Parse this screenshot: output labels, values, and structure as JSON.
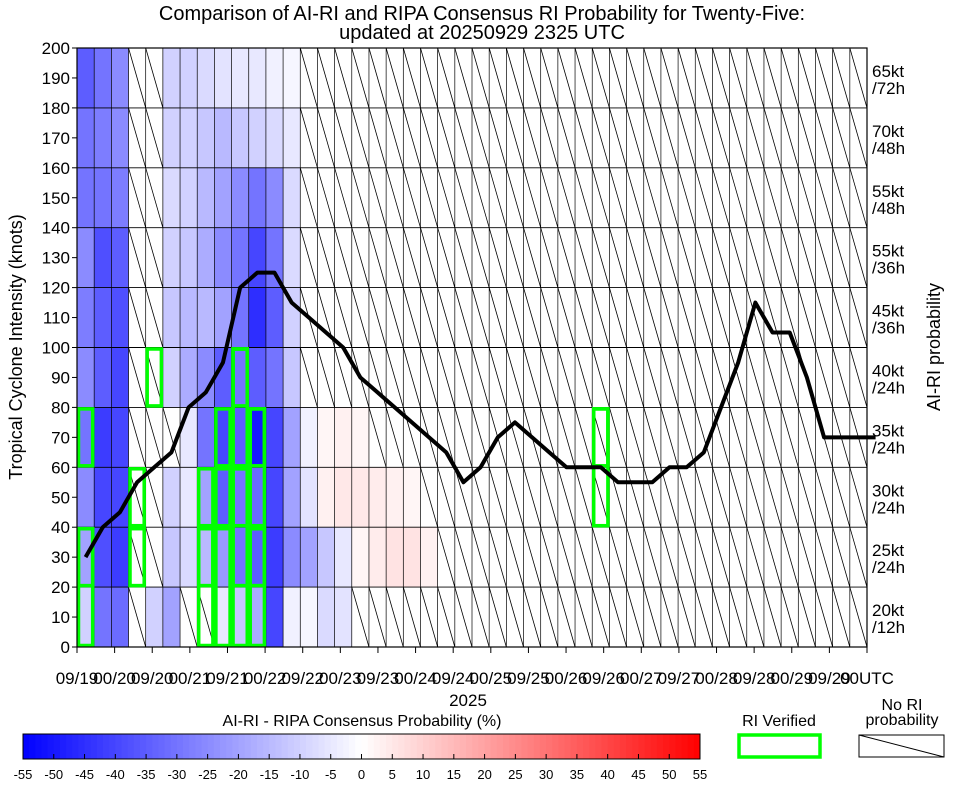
{
  "chart_data": {
    "type": "heatmap",
    "title_line1": "Comparison of AI-RI and RIPA Consensus RI Probability for Twenty-Five:",
    "title_line2": "updated at 20250929 2325 UTC",
    "ylabel": "Tropical Cyclone Intensity (knots)",
    "right_label": "AI-RI probability",
    "xlabel_year": "2025",
    "ylim": [
      0,
      200
    ],
    "y_ticks": [
      "0",
      "10",
      "20",
      "30",
      "40",
      "50",
      "60",
      "70",
      "80",
      "90",
      "100",
      "110",
      "120",
      "130",
      "140",
      "150",
      "160",
      "170",
      "180",
      "190",
      "200"
    ],
    "x_tick_labels": [
      "09/19",
      "00/20",
      "09/20",
      "00/21",
      "09/21",
      "00/22",
      "09/22",
      "00/23",
      "09/23",
      "00/24",
      "09/24",
      "00/25",
      "09/25",
      "00/26",
      "09/26",
      "00/27",
      "09/27",
      "00/28",
      "09/28",
      "00/29",
      "09/29",
      "00UTC"
    ],
    "rows": [
      {
        "label1": "20kt",
        "label2": "/12h",
        "y_low": 0,
        "y_high": 20
      },
      {
        "label1": "25kt",
        "label2": "/24h",
        "y_low": 20,
        "y_high": 40
      },
      {
        "label1": "30kt",
        "label2": "/24h",
        "y_low": 40,
        "y_high": 60
      },
      {
        "label1": "35kt",
        "label2": "/24h",
        "y_low": 60,
        "y_high": 80
      },
      {
        "label1": "40kt",
        "label2": "/24h",
        "y_low": 80,
        "y_high": 100
      },
      {
        "label1": "45kt",
        "label2": "/36h",
        "y_low": 100,
        "y_high": 120
      },
      {
        "label1": "55kt",
        "label2": "/36h",
        "y_low": 120,
        "y_high": 140
      },
      {
        "label1": "55kt",
        "label2": "/48h",
        "y_low": 140,
        "y_high": 160
      },
      {
        "label1": "70kt",
        "label2": "/48h",
        "y_low": 160,
        "y_high": 180
      },
      {
        "label1": "65kt",
        "label2": "/72h",
        "y_low": 180,
        "y_high": 200
      }
    ],
    "intensity_series": [
      30,
      40,
      45,
      55,
      60,
      65,
      80,
      85,
      95,
      120,
      125,
      125,
      115,
      110,
      105,
      100,
      90,
      85,
      80,
      75,
      70,
      65,
      55,
      60,
      70,
      75,
      70,
      65,
      60,
      60,
      60,
      55,
      55,
      55,
      60,
      60,
      65,
      80,
      95,
      115,
      105,
      105,
      90,
      70,
      70,
      70,
      70
    ],
    "cell_values": [
      [
        -10,
        -30,
        -32,
        null,
        -10,
        -20,
        null,
        null,
        -5,
        -12,
        -18,
        -40,
        -3,
        -2,
        -8,
        -6,
        null,
        null,
        null,
        null,
        null,
        null,
        null,
        null,
        null,
        null,
        null,
        null,
        null,
        null,
        null,
        null,
        null,
        null,
        null,
        null,
        null,
        null,
        null,
        null,
        null,
        null,
        null,
        null,
        null,
        null
      ],
      [
        -20,
        -38,
        -42,
        null,
        null,
        -12,
        -8,
        -15,
        -22,
        -30,
        -35,
        -42,
        -25,
        -20,
        -12,
        -5,
        2,
        4,
        6,
        6,
        3,
        null,
        null,
        null,
        null,
        null,
        null,
        null,
        null,
        null,
        null,
        null,
        null,
        null,
        null,
        null,
        null,
        null,
        null,
        null,
        null,
        null,
        null,
        null,
        null,
        null
      ],
      [
        -25,
        -40,
        -40,
        null,
        null,
        -10,
        -5,
        -20,
        -35,
        -30,
        -32,
        -40,
        -20,
        -6,
        3,
        5,
        5,
        4,
        3,
        2,
        null,
        null,
        null,
        null,
        null,
        null,
        null,
        null,
        null,
        null,
        null,
        null,
        null,
        null,
        null,
        null,
        null,
        null,
        null,
        null,
        null,
        null,
        null,
        null,
        null,
        null
      ],
      [
        -30,
        -42,
        -40,
        null,
        null,
        null,
        -5,
        -30,
        -40,
        -35,
        -50,
        -40,
        -20,
        -3,
        2,
        3,
        2,
        null,
        null,
        null,
        null,
        null,
        null,
        null,
        null,
        null,
        null,
        null,
        null,
        null,
        null,
        null,
        null,
        null,
        null,
        null,
        null,
        null,
        null,
        null,
        null,
        null,
        null,
        null,
        null,
        null
      ],
      [
        -25,
        -35,
        -40,
        null,
        null,
        -10,
        -18,
        -25,
        -35,
        -30,
        -35,
        -30,
        -12,
        null,
        null,
        null,
        null,
        null,
        null,
        null,
        null,
        null,
        null,
        null,
        null,
        null,
        null,
        null,
        null,
        null,
        null,
        null,
        null,
        null,
        null,
        null,
        null,
        null,
        null,
        null,
        null,
        null,
        null,
        null,
        null,
        null
      ],
      [
        -28,
        -35,
        -38,
        null,
        null,
        -12,
        -15,
        -15,
        -20,
        -30,
        -45,
        -35,
        -10,
        null,
        null,
        null,
        null,
        null,
        null,
        null,
        null,
        null,
        null,
        null,
        null,
        null,
        null,
        null,
        null,
        null,
        null,
        null,
        null,
        null,
        null,
        null,
        null,
        null,
        null,
        null,
        null,
        null,
        null,
        null,
        null,
        null
      ],
      [
        -25,
        -38,
        -35,
        null,
        null,
        -10,
        -12,
        -18,
        -25,
        -30,
        -40,
        -30,
        -8,
        null,
        null,
        null,
        null,
        null,
        null,
        null,
        null,
        null,
        null,
        null,
        null,
        null,
        null,
        null,
        null,
        null,
        null,
        null,
        null,
        null,
        null,
        null,
        null,
        null,
        null,
        null,
        null,
        null,
        null,
        null,
        null,
        null
      ],
      [
        -30,
        -30,
        -28,
        null,
        null,
        -8,
        -10,
        -15,
        -20,
        -25,
        -30,
        -25,
        -8,
        null,
        null,
        null,
        null,
        null,
        null,
        null,
        null,
        null,
        null,
        null,
        null,
        null,
        null,
        null,
        null,
        null,
        null,
        null,
        null,
        null,
        null,
        null,
        null,
        null,
        null,
        null,
        null,
        null,
        null,
        null,
        null,
        null
      ],
      [
        -30,
        -28,
        -25,
        null,
        null,
        -10,
        -10,
        -12,
        -15,
        -12,
        -10,
        -8,
        -5,
        null,
        null,
        null,
        null,
        null,
        null,
        null,
        null,
        null,
        null,
        null,
        null,
        null,
        null,
        null,
        null,
        null,
        null,
        null,
        null,
        null,
        null,
        null,
        null,
        null,
        null,
        null,
        null,
        null,
        null,
        null,
        null,
        null
      ],
      [
        -35,
        -30,
        -25,
        null,
        null,
        -10,
        -10,
        -8,
        -6,
        -5,
        -5,
        -3,
        -2,
        null,
        null,
        null,
        null,
        null,
        null,
        null,
        null,
        null,
        null,
        null,
        null,
        null,
        null,
        null,
        null,
        null,
        null,
        null,
        null,
        null,
        null,
        null,
        null,
        null,
        null,
        null,
        null,
        null,
        null,
        null,
        null,
        null
      ]
    ],
    "colorbar": {
      "title": "AI-RI - RIPA Consensus Probability (%)",
      "ticks": [
        "-55",
        "-50",
        "-45",
        "-40",
        "-35",
        "-30",
        "-25",
        "-20",
        "-15",
        "-10",
        "-5",
        "0",
        "5",
        "10",
        "15",
        "20",
        "25",
        "30",
        "35",
        "40",
        "45",
        "50",
        "55"
      ],
      "min": -55,
      "max": 55
    },
    "legend": {
      "verified_label": "RI Verified",
      "no_ri_label_line1": "No RI",
      "no_ri_label_line2": "probability"
    },
    "colors": {
      "verified_box": "#00ff00",
      "intensity_line": "#000000",
      "cold": "#0000ff",
      "warm": "#ff0000"
    }
  }
}
